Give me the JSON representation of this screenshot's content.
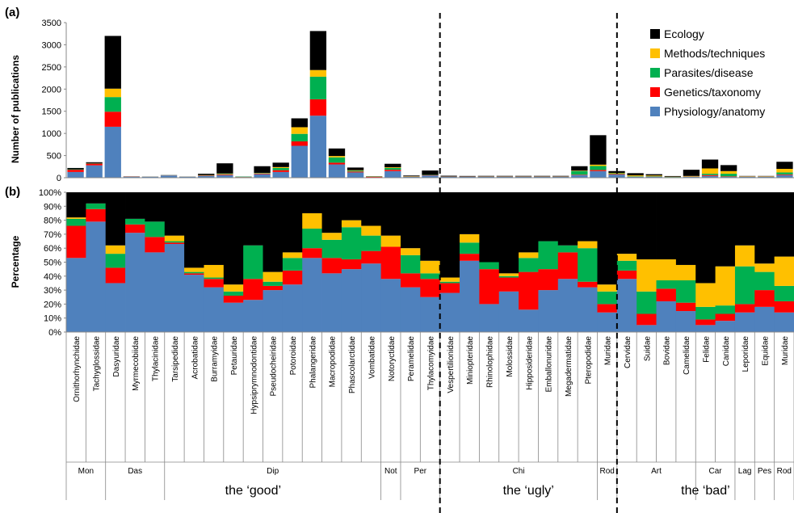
{
  "chart_data": [
    {
      "panel_label": "(a)",
      "type": "bar",
      "stacked": true,
      "ylabel": "Number of publications",
      "ylim": [
        0,
        3500
      ],
      "yticks": [
        0,
        500,
        1000,
        1500,
        2000,
        2500,
        3000,
        3500
      ],
      "legend_position": "top-right",
      "series": [
        {
          "name": "Physiology/anatomy",
          "color": "#4f81bd",
          "values": [
            130,
            280,
            1150,
            20,
            20,
            50,
            20,
            40,
            60,
            10,
            80,
            130,
            720,
            1400,
            300,
            120,
            10,
            150,
            20,
            50,
            20,
            20,
            20,
            20,
            20,
            20,
            20,
            60,
            150,
            70,
            20,
            20,
            10,
            20,
            40,
            20,
            20,
            20,
            60
          ]
        },
        {
          "name": "Genetics/taxonomy",
          "color": "#ff0000",
          "values": [
            50,
            40,
            340,
            5,
            2,
            3,
            2,
            10,
            15,
            5,
            15,
            40,
            100,
            370,
            40,
            20,
            10,
            30,
            5,
            5,
            5,
            5,
            5,
            5,
            5,
            5,
            5,
            10,
            25,
            15,
            3,
            5,
            3,
            5,
            20,
            10,
            5,
            5,
            15
          ]
        },
        {
          "name": "Parasites/disease",
          "color": "#00b050",
          "values": [
            10,
            10,
            330,
            2,
            2,
            3,
            2,
            5,
            10,
            10,
            10,
            50,
            170,
            510,
            120,
            20,
            5,
            40,
            5,
            5,
            5,
            5,
            5,
            5,
            5,
            5,
            5,
            80,
            90,
            15,
            10,
            10,
            5,
            5,
            30,
            60,
            5,
            5,
            45
          ]
        },
        {
          "name": "Methods/techniques",
          "color": "#ffc000",
          "values": [
            0,
            0,
            190,
            0,
            0,
            0,
            0,
            5,
            10,
            0,
            5,
            20,
            150,
            150,
            30,
            10,
            5,
            15,
            5,
            3,
            0,
            0,
            2,
            2,
            2,
            2,
            2,
            10,
            30,
            10,
            20,
            15,
            5,
            10,
            120,
            60,
            5,
            5,
            80
          ]
        },
        {
          "name": "Ecology",
          "color": "#000000",
          "values": [
            30,
            20,
            1190,
            3,
            2,
            4,
            2,
            30,
            230,
            2,
            150,
            100,
            200,
            880,
            170,
            60,
            5,
            80,
            15,
            100,
            15,
            10,
            10,
            10,
            10,
            10,
            10,
            100,
            665,
            40,
            50,
            30,
            15,
            140,
            200,
            135,
            5,
            5,
            160
          ]
        }
      ]
    },
    {
      "panel_label": "(b)",
      "type": "bar",
      "stacked": true,
      "ylabel": "Percentage",
      "ylim": [
        0,
        100
      ],
      "yticks": [
        "0%",
        "10%",
        "20%",
        "30%",
        "40%",
        "50%",
        "60%",
        "70%",
        "80%",
        "90%",
        "100%"
      ],
      "categories": [
        "Ornithorhynchidae",
        "Tachyglossidae",
        "Dasyuridae",
        "Myrmecobiidae",
        "Thylacinidae",
        "Tarsipedidae",
        "Acrobatidae",
        "Burramyidae",
        "Petauridae",
        "Hypsiprymnodontidae",
        "Pseudocheiridae",
        "Potoroidae",
        "Phalangeridae",
        "Macropodidae",
        "Phascolarctidae",
        "Vombatidae",
        "Notoryctidae",
        "Peramelidae",
        "Thylacomyidae",
        "Vespertilionidae",
        "Miniopteridae",
        "Rhinolophidae",
        "Molossidae",
        "Hipposideridae",
        "Emballonuridae",
        "Megadermatidae",
        "Pteropodidae",
        "Muridae",
        "Cervidae",
        "Suidae",
        "Bovidae",
        "Camelidae",
        "Felidae",
        "Canidae",
        "Leporidae",
        "Equidae",
        "Muridae"
      ],
      "series": [
        {
          "name": "Physiology/anatomy",
          "values": [
            53,
            79,
            35,
            71,
            57,
            63,
            41,
            32,
            21,
            23,
            30,
            34,
            53,
            42,
            45,
            49,
            38,
            32,
            25,
            28,
            51,
            20,
            29,
            16,
            30,
            38,
            32,
            14,
            38,
            5,
            22,
            15,
            5,
            8,
            14,
            18,
            14
          ]
        },
        {
          "name": "Genetics/taxonomy",
          "values": [
            23,
            9,
            11,
            6,
            11,
            1,
            1,
            6,
            5,
            15,
            3,
            10,
            7,
            11,
            7,
            9,
            23,
            10,
            13,
            7,
            5,
            25,
            10,
            27,
            15,
            19,
            4,
            6,
            6,
            8,
            9,
            6,
            4,
            5,
            6,
            12,
            8
          ]
        },
        {
          "name": "Parasites/disease",
          "values": [
            5,
            4,
            10,
            4,
            11,
            1,
            1,
            1,
            3,
            24,
            3,
            9,
            14,
            13,
            23,
            11,
            0,
            13,
            4,
            1,
            8,
            5,
            1,
            10,
            20,
            5,
            24,
            9,
            7,
            16,
            6,
            16,
            9,
            6,
            27,
            13,
            11
          ]
        },
        {
          "name": "Methods/techniques",
          "values": [
            1,
            0,
            6,
            0,
            0,
            4,
            3,
            9,
            5,
            0,
            7,
            4,
            11,
            5,
            5,
            7,
            8,
            5,
            9,
            3,
            6,
            0,
            2,
            4,
            0,
            0,
            5,
            5,
            5,
            23,
            15,
            11,
            17,
            28,
            15,
            6,
            21
          ]
        },
        {
          "name": "Ecology",
          "values": [
            18,
            8,
            38,
            19,
            21,
            31,
            54,
            52,
            66,
            38,
            57,
            43,
            15,
            29,
            20,
            24,
            31,
            40,
            49,
            61,
            30,
            50,
            58,
            43,
            35,
            38,
            35,
            66,
            44,
            48,
            48,
            52,
            65,
            53,
            38,
            51,
            46
          ]
        }
      ]
    }
  ],
  "bar_groups_a": {
    "good": [
      [
        0,
        1
      ],
      [
        2,
        3
      ],
      [
        4
      ],
      [
        5,
        6
      ],
      [
        7
      ],
      [
        8
      ],
      [
        9
      ],
      [
        10
      ],
      [
        11
      ],
      [
        12
      ],
      [
        13
      ],
      [
        14
      ],
      [
        15
      ],
      [
        16
      ],
      [
        17
      ],
      [
        18
      ],
      [
        19,
        20,
        21
      ]
    ],
    "ugly": [
      [
        22
      ],
      [
        23
      ],
      [
        24
      ],
      [
        25
      ],
      [
        26
      ],
      [
        27
      ],
      [
        28
      ],
      [
        29
      ],
      [
        30
      ]
    ],
    "bad": [
      [
        31
      ],
      [
        32
      ],
      [
        33
      ],
      [
        34
      ],
      [
        35
      ],
      [
        36
      ],
      [
        37
      ],
      [
        38
      ]
    ]
  },
  "orders": [
    {
      "label": "Mon",
      "from": 0,
      "to": 2
    },
    {
      "label": "Das",
      "from": 2,
      "to": 5
    },
    {
      "label": "Dip",
      "from": 5,
      "to": 16
    },
    {
      "label": "Not",
      "from": 16,
      "to": 17
    },
    {
      "label": "Per",
      "from": 17,
      "to": 19
    },
    {
      "label": "Chi",
      "from": 19,
      "to": 27
    },
    {
      "label": "Rod",
      "from": 27,
      "to": 28
    },
    {
      "label": "Art",
      "from": 28,
      "to": 32
    },
    {
      "label": "Car",
      "from": 32,
      "to": 34
    },
    {
      "label": "Lag",
      "from": 34,
      "to": 35
    },
    {
      "label": "Pes",
      "from": 35,
      "to": 36
    },
    {
      "label": "Rod",
      "from": 36,
      "to": 37
    }
  ],
  "groups": [
    {
      "label": "the ‘good’",
      "from": 0,
      "to": 19
    },
    {
      "label": "the ‘ugly’",
      "from": 19,
      "to": 28
    },
    {
      "label": "the ‘bad’",
      "from": 28,
      "to": 37
    }
  ],
  "legend": {
    "entries": [
      "Ecology",
      "Methods/techniques",
      "Parasites/disease",
      "Genetics/taxonomy",
      "Physiology/anatomy"
    ],
    "colors": [
      "#000000",
      "#ffc000",
      "#00b050",
      "#ff0000",
      "#4f81bd"
    ]
  }
}
